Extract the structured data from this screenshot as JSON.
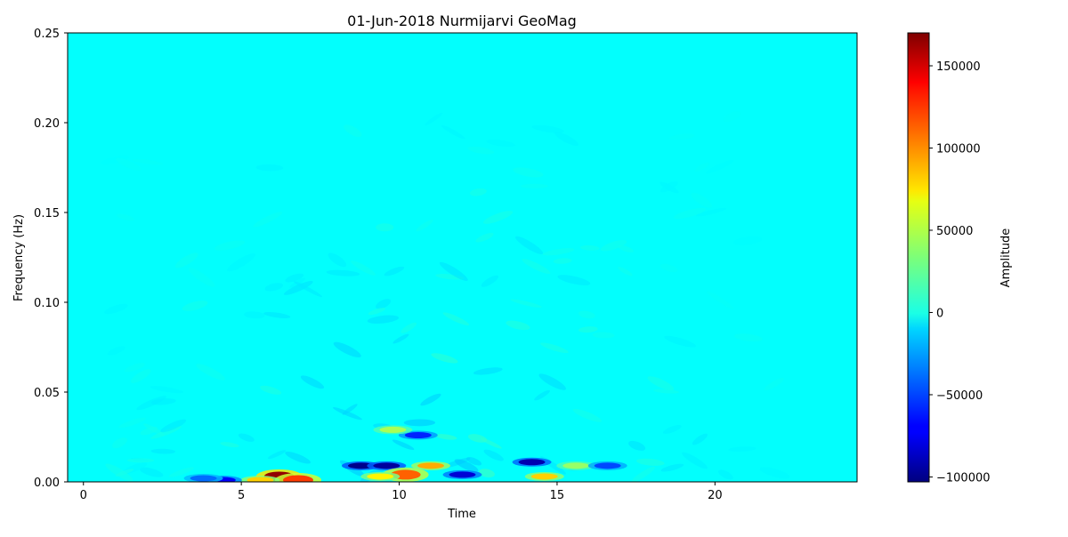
{
  "chart_data": {
    "type": "heatmap",
    "title": "01-Jun-2018 Nurmijarvi GeoMag",
    "xlabel": "Time",
    "ylabel": "Frequency (Hz)",
    "xlim": [
      -0.5,
      24.5
    ],
    "ylim": [
      0,
      0.25
    ],
    "x_ticks": [
      0,
      5,
      10,
      15,
      20
    ],
    "y_ticks": [
      0.0,
      0.05,
      0.1,
      0.15,
      0.2,
      0.25
    ],
    "y_tick_labels": [
      "0.00",
      "0.05",
      "0.10",
      "0.15",
      "0.20",
      "0.25"
    ],
    "grid": false,
    "colormap": "jet",
    "colorbar": {
      "label": "Amplitude",
      "vmin": -103000,
      "vmax": 170000,
      "ticks": [
        -100000,
        -50000,
        0,
        50000,
        100000,
        150000
      ],
      "tick_labels": [
        "−100000",
        "−50000",
        "0",
        "50000",
        "100000",
        "150000"
      ]
    },
    "background_value": 0,
    "features": [
      {
        "time": 6.2,
        "freq": 0.003,
        "amplitude": 165000
      },
      {
        "time": 6.8,
        "freq": 0.001,
        "amplitude": 120000
      },
      {
        "time": 5.6,
        "freq": 0.001,
        "amplitude": 80000
      },
      {
        "time": 4.4,
        "freq": 0.001,
        "amplitude": -70000
      },
      {
        "time": 3.8,
        "freq": 0.002,
        "amplitude": -40000
      },
      {
        "time": 8.8,
        "freq": 0.009,
        "amplitude": -100000
      },
      {
        "time": 9.6,
        "freq": 0.009,
        "amplitude": -95000
      },
      {
        "time": 10.2,
        "freq": 0.004,
        "amplitude": 110000
      },
      {
        "time": 9.4,
        "freq": 0.003,
        "amplitude": 70000
      },
      {
        "time": 11.0,
        "freq": 0.009,
        "amplitude": 90000
      },
      {
        "time": 12.0,
        "freq": 0.004,
        "amplitude": -80000
      },
      {
        "time": 14.2,
        "freq": 0.011,
        "amplitude": -90000
      },
      {
        "time": 14.6,
        "freq": 0.003,
        "amplitude": 80000
      },
      {
        "time": 15.6,
        "freq": 0.009,
        "amplitude": 40000
      },
      {
        "time": 16.6,
        "freq": 0.009,
        "amplitude": -50000
      },
      {
        "time": 10.6,
        "freq": 0.026,
        "amplitude": -60000
      },
      {
        "time": 9.8,
        "freq": 0.029,
        "amplitude": 45000
      }
    ]
  }
}
